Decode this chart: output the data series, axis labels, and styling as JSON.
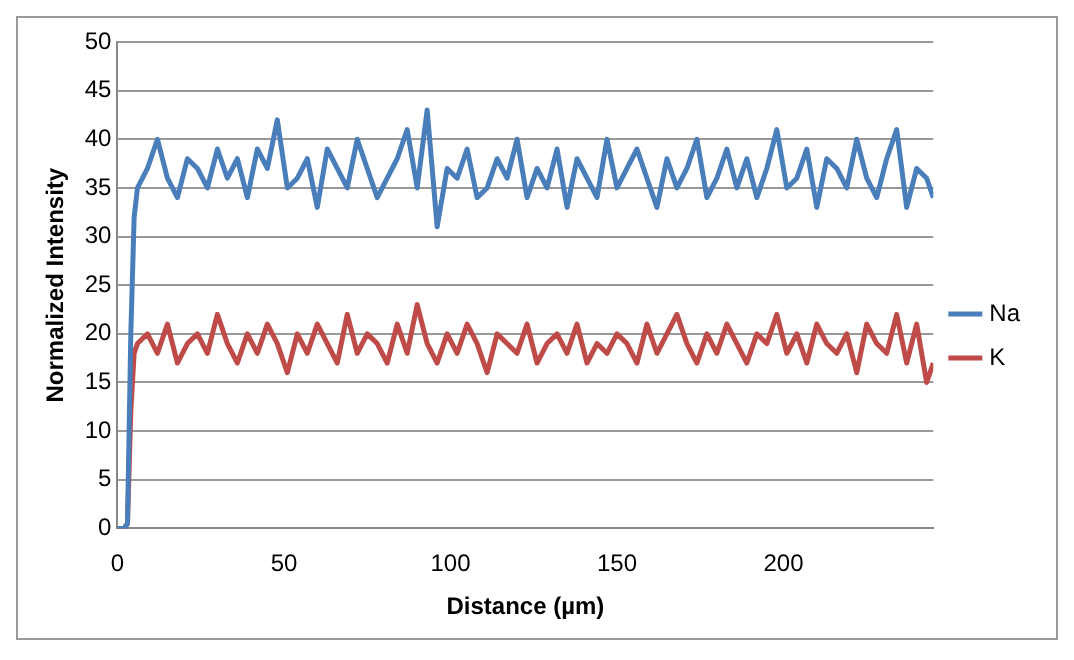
{
  "chart_data": {
    "type": "line",
    "xlabel": "Distance (µm)",
    "ylabel": "Normalized Intensity",
    "x": [
      0,
      2,
      3,
      4,
      5,
      6,
      9,
      12,
      15,
      18,
      21,
      24,
      27,
      30,
      33,
      36,
      39,
      42,
      45,
      48,
      51,
      54,
      57,
      60,
      63,
      66,
      69,
      72,
      75,
      78,
      81,
      84,
      87,
      90,
      93,
      96,
      99,
      102,
      105,
      108,
      111,
      114,
      117,
      120,
      123,
      126,
      129,
      132,
      135,
      138,
      141,
      144,
      147,
      150,
      153,
      156,
      159,
      162,
      165,
      168,
      171,
      174,
      177,
      180,
      183,
      186,
      189,
      192,
      195,
      198,
      201,
      204,
      207,
      210,
      213,
      216,
      219,
      222,
      225,
      228,
      231,
      234,
      237,
      240,
      243,
      245
    ],
    "series": [
      {
        "name": "Na",
        "color": "#4a7ebb",
        "values": [
          0,
          0,
          0.5,
          20,
          32,
          35,
          37,
          40,
          36,
          34,
          38,
          37,
          35,
          39,
          36,
          38,
          34,
          39,
          37,
          42,
          35,
          36,
          38,
          33,
          39,
          37,
          35,
          40,
          37,
          34,
          36,
          38,
          41,
          35,
          43,
          31,
          37,
          36,
          39,
          34,
          35,
          38,
          36,
          40,
          34,
          37,
          35,
          39,
          33,
          38,
          36,
          34,
          40,
          35,
          37,
          39,
          36,
          33,
          38,
          35,
          37,
          40,
          34,
          36,
          39,
          35,
          38,
          34,
          37,
          41,
          35,
          36,
          39,
          33,
          38,
          37,
          35,
          40,
          36,
          34,
          38,
          41,
          33,
          37,
          36,
          34
        ]
      },
      {
        "name": "K",
        "color": "#be4b48",
        "values": [
          0,
          0,
          0.5,
          12,
          18,
          19,
          20,
          18,
          21,
          17,
          19,
          20,
          18,
          22,
          19,
          17,
          20,
          18,
          21,
          19,
          16,
          20,
          18,
          21,
          19,
          17,
          22,
          18,
          20,
          19,
          17,
          21,
          18,
          23,
          19,
          17,
          20,
          18,
          21,
          19,
          16,
          20,
          19,
          18,
          21,
          17,
          19,
          20,
          18,
          21,
          17,
          19,
          18,
          20,
          19,
          17,
          21,
          18,
          20,
          22,
          19,
          17,
          20,
          18,
          21,
          19,
          17,
          20,
          19,
          22,
          18,
          20,
          17,
          21,
          19,
          18,
          20,
          16,
          21,
          19,
          18,
          22,
          17,
          21,
          15,
          17
        ]
      }
    ],
    "xlim": [
      0,
      245
    ],
    "xticks": [
      0,
      50,
      100,
      150,
      200
    ],
    "ylim": [
      0,
      50
    ],
    "yticks": [
      0,
      5,
      10,
      15,
      20,
      25,
      30,
      35,
      40,
      45,
      50
    ],
    "grid": "y",
    "legend": "right",
    "marker": "none",
    "line_style": "solid"
  }
}
